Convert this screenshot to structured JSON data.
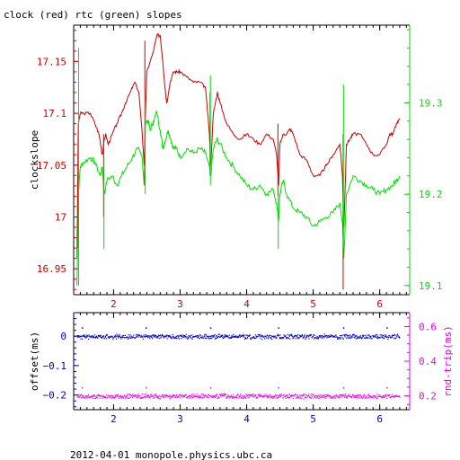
{
  "colors": {
    "clock": "#cc0000",
    "rtc": "#00dd00",
    "offset": "#0000cc",
    "rndtrip": "#ee00ee",
    "axis": "#000000"
  },
  "footer": "2012-04-01 monopole.physics.ubc.ca",
  "chart_data": [
    {
      "type": "line",
      "title": "clock (red) rtc (green) slopes",
      "xlabel": "",
      "ylabel": "clockslope",
      "y2label": "",
      "xlim": [
        1.4,
        6.45
      ],
      "ylim": [
        16.925,
        17.185
      ],
      "y2lim": [
        19.09,
        19.385
      ],
      "x_ticks": [
        2,
        3,
        4,
        5,
        6
      ],
      "y_ticks": [
        16.95,
        17,
        17.05,
        17.1,
        17.15
      ],
      "y_tick_labels": [
        "16.95",
        "17",
        "17.05",
        "17.1",
        "17.15"
      ],
      "y2_ticks": [
        19.1,
        19.2,
        19.3
      ],
      "y2_tick_labels": [
        "19.1",
        "19.2",
        "19.3"
      ],
      "grid": false,
      "series": [
        {
          "name": "clock",
          "axis": "left",
          "color": "#cc0000",
          "x": [
            1.45,
            1.47,
            1.5,
            1.55,
            1.65,
            1.72,
            1.78,
            1.83,
            1.85,
            1.88,
            1.92,
            1.98,
            2.05,
            2.12,
            2.18,
            2.25,
            2.32,
            2.38,
            2.43,
            2.46,
            2.48,
            2.5,
            2.55,
            2.6,
            2.65,
            2.7,
            2.74,
            2.78,
            2.8,
            2.85,
            2.9,
            2.95,
            3.0,
            3.1,
            3.2,
            3.3,
            3.38,
            3.44,
            3.46,
            3.5,
            3.56,
            3.6,
            3.7,
            3.8,
            3.9,
            4.0,
            4.1,
            4.2,
            4.3,
            4.4,
            4.45,
            4.48,
            4.5,
            4.55,
            4.6,
            4.65,
            4.7,
            4.8,
            4.9,
            5.0,
            5.1,
            5.15,
            5.2,
            5.3,
            5.4,
            5.44,
            5.46,
            5.5,
            5.55,
            5.6,
            5.7,
            5.8,
            5.9,
            6.0,
            6.1,
            6.15,
            6.2,
            6.25,
            6.3
          ],
          "y": [
            16.96,
            17.09,
            17.1,
            17.1,
            17.1,
            17.09,
            17.08,
            17.06,
            17.07,
            17.08,
            17.07,
            17.08,
            17.09,
            17.1,
            17.11,
            17.12,
            17.13,
            17.12,
            17.08,
            17.05,
            17.1,
            17.14,
            17.15,
            17.16,
            17.175,
            17.175,
            17.15,
            17.12,
            17.11,
            17.13,
            17.14,
            17.14,
            17.14,
            17.135,
            17.13,
            17.13,
            17.125,
            17.08,
            17.05,
            17.1,
            17.12,
            17.11,
            17.09,
            17.08,
            17.075,
            17.08,
            17.075,
            17.07,
            17.08,
            17.075,
            17.06,
            17.03,
            17.07,
            17.08,
            17.08,
            17.085,
            17.08,
            17.06,
            17.055,
            17.04,
            17.04,
            17.045,
            17.05,
            17.06,
            17.07,
            17.04,
            16.99,
            17.07,
            17.075,
            17.08,
            17.08,
            17.07,
            17.06,
            17.06,
            17.07,
            17.08,
            17.08,
            17.09,
            17.095
          ]
        },
        {
          "name": "rtc",
          "axis": "right",
          "color": "#00dd00",
          "x": [
            1.45,
            1.47,
            1.5,
            1.55,
            1.65,
            1.72,
            1.8,
            1.83,
            1.86,
            1.9,
            1.98,
            2.05,
            2.12,
            2.2,
            2.28,
            2.36,
            2.43,
            2.46,
            2.48,
            2.52,
            2.55,
            2.6,
            2.65,
            2.7,
            2.74,
            2.78,
            2.82,
            2.86,
            2.9,
            2.95,
            3.0,
            3.1,
            3.2,
            3.3,
            3.38,
            3.44,
            3.46,
            3.5,
            3.55,
            3.6,
            3.7,
            3.8,
            3.9,
            4.0,
            4.1,
            4.2,
            4.3,
            4.4,
            4.45,
            4.48,
            4.5,
            4.55,
            4.6,
            4.7,
            4.8,
            4.9,
            5.0,
            5.1,
            5.2,
            5.3,
            5.4,
            5.44,
            5.46,
            5.5,
            5.6,
            5.7,
            5.8,
            5.9,
            6.0,
            6.1,
            6.2,
            6.25,
            6.3
          ],
          "y": [
            19.1,
            19.2,
            19.23,
            19.235,
            19.24,
            19.235,
            19.22,
            19.23,
            19.2,
            19.215,
            19.22,
            19.21,
            19.22,
            19.23,
            19.24,
            19.25,
            19.24,
            19.21,
            19.28,
            19.28,
            19.27,
            19.28,
            19.29,
            19.27,
            19.25,
            19.26,
            19.27,
            19.26,
            19.25,
            19.25,
            19.24,
            19.25,
            19.245,
            19.25,
            19.245,
            19.23,
            19.22,
            19.25,
            19.26,
            19.255,
            19.24,
            19.23,
            19.22,
            19.21,
            19.205,
            19.21,
            19.2,
            19.205,
            19.19,
            19.17,
            19.2,
            19.215,
            19.2,
            19.185,
            19.18,
            19.175,
            19.165,
            19.17,
            19.175,
            19.18,
            19.19,
            19.17,
            19.13,
            19.2,
            19.22,
            19.215,
            19.21,
            19.205,
            19.2,
            19.205,
            19.21,
            19.215,
            19.22
          ]
        }
      ]
    },
    {
      "type": "scatter",
      "title": "",
      "xlabel": "",
      "ylabel": "offset(ms)",
      "y2label": "rnd-trip(ms)",
      "xlim": [
        1.4,
        6.45
      ],
      "ylim": [
        -0.25,
        0.08
      ],
      "y2lim": [
        0.12,
        0.68
      ],
      "x_ticks": [
        2,
        3,
        4,
        5,
        6
      ],
      "y_ticks": [
        0,
        -0.1,
        -0.2
      ],
      "y_tick_labels": [
        "0",
        "−0.1",
        "−0.2"
      ],
      "y2_ticks": [
        0.2,
        0.4,
        0.6
      ],
      "y2_tick_labels": [
        "0.2",
        "0.4",
        "0.6"
      ],
      "grid": false,
      "series": [
        {
          "name": "offset",
          "axis": "left",
          "color": "#0000cc",
          "level": 0.0,
          "spread": 0.006
        },
        {
          "name": "rnd-trip",
          "axis": "right",
          "color": "#ee00ee",
          "level": 0.2,
          "spread": 0.01
        }
      ]
    }
  ]
}
